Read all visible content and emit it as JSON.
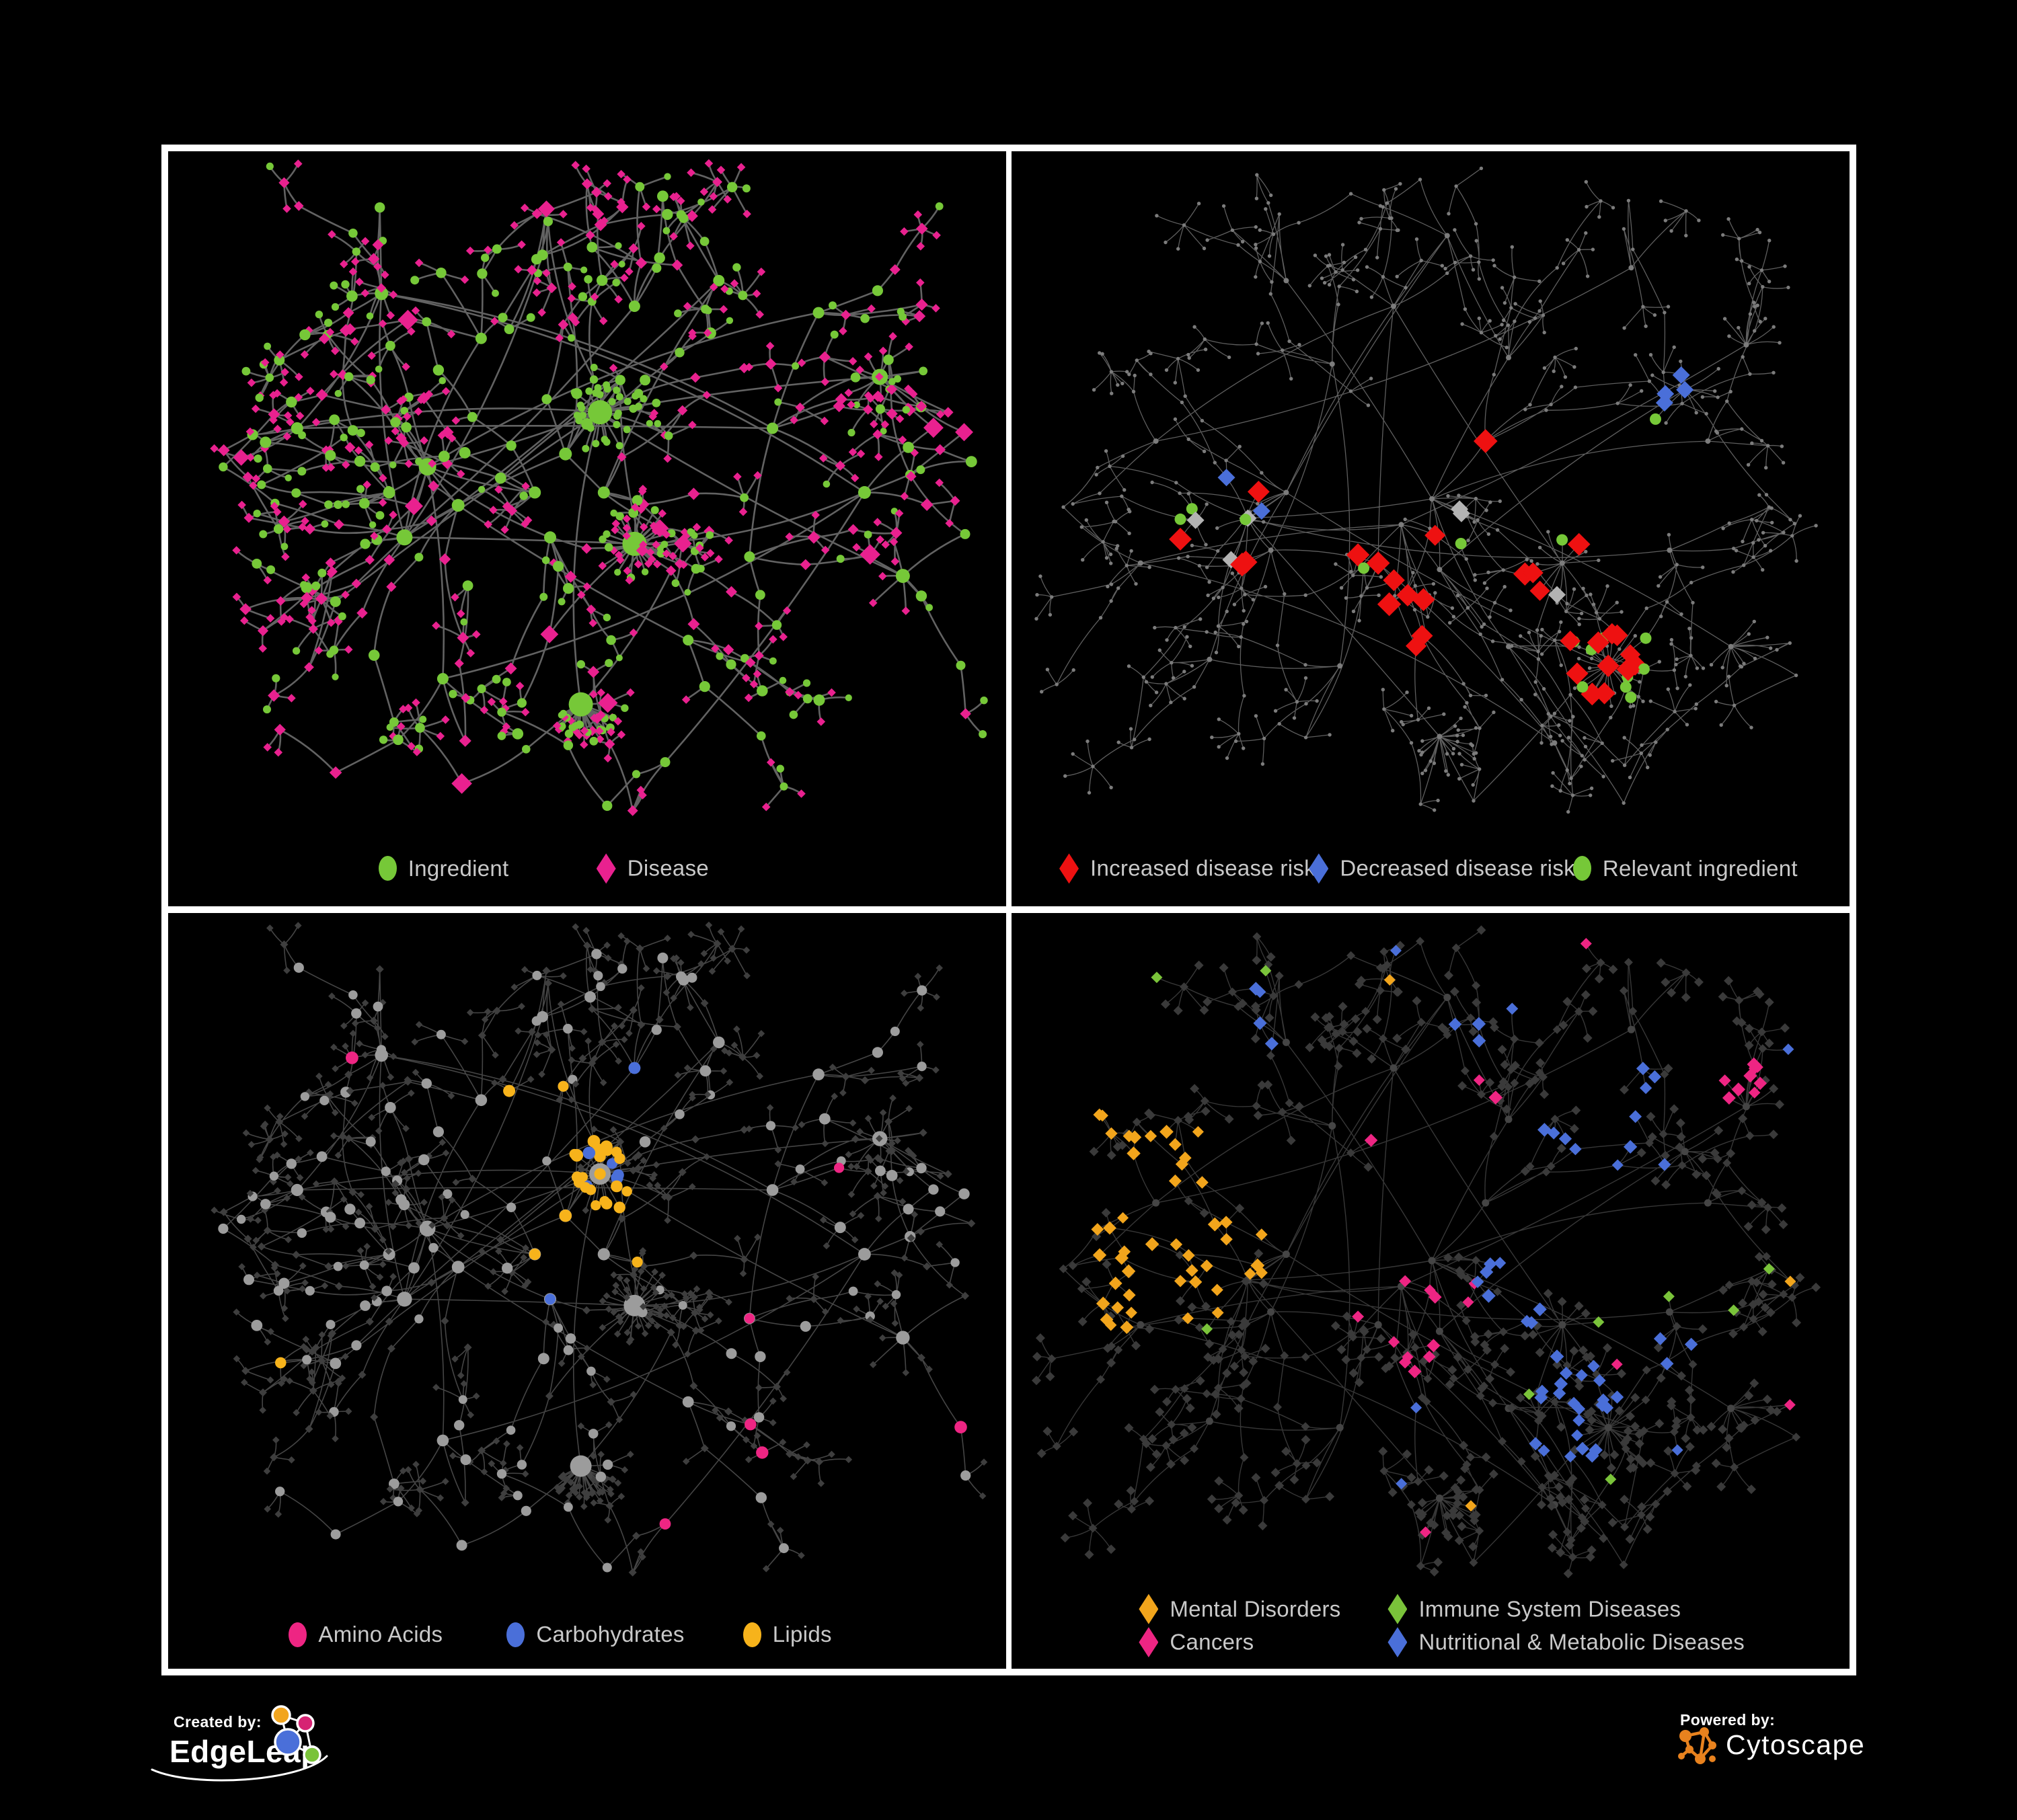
{
  "figure_background": "#000000",
  "frame_color": "#FFFFFF",
  "legend_text_color": "#C9C9C9",
  "chart_data": {
    "type": "network",
    "figure": "2x2 grid of dark network-graph panels (ingredient-disease association networks) framed in white",
    "panels": [
      {
        "id": "ingredient-disease",
        "edge_color": "#6A6A6A",
        "palette": {
          "ingredient": "#76C838",
          "disease": "#E9218F"
        },
        "legend": {
          "items": [
            {
              "label": "Ingredient",
              "shape": "circle",
              "color": "#76C838",
              "x": 0.251,
              "y": 0.95
            },
            {
              "label": "Disease",
              "shape": "diamond",
              "color": "#E9218F",
              "x": 0.511,
              "y": 0.95
            }
          ]
        }
      },
      {
        "id": "disease-risk",
        "edge_color": "#6E6E6E",
        "palette": {
          "increased": "#EE1111",
          "decreased": "#4A6FD9",
          "relevant": "#76C838",
          "other": "#B3B3B3",
          "node": "#7C7C7C"
        },
        "legend": {
          "items": [
            {
              "label": "Increased disease risk",
              "shape": "diamond",
              "color": "#EE1111",
              "x": 0.057,
              "y": 0.95
            },
            {
              "label": "Decreased disease risk",
              "shape": "diamond",
              "color": "#4A6FD9",
              "x": 0.355,
              "y": 0.95
            },
            {
              "label": "Relevant ingredient",
              "shape": "circle",
              "color": "#76C838",
              "x": 0.67,
              "y": 0.95
            }
          ]
        }
      },
      {
        "id": "macronutrients",
        "edge_color": "#9A9A9A",
        "palette": {
          "amino_acids": "#EE2583",
          "carbohydrates": "#4A6FD9",
          "lipids": "#F7B31B",
          "node_gray": "#9C9C9C",
          "leaf_dark": "#3E3E3E"
        },
        "legend": {
          "items": [
            {
              "label": "Amino Acids",
              "shape": "circle",
              "color": "#EE2583",
              "x": 0.144,
              "y": 0.955
            },
            {
              "label": "Carbohydrates",
              "shape": "circle",
              "color": "#4A6FD9",
              "x": 0.404,
              "y": 0.955
            },
            {
              "label": "Lipids",
              "shape": "circle",
              "color": "#F7B31B",
              "x": 0.686,
              "y": 0.955
            }
          ]
        }
      },
      {
        "id": "disease-categories",
        "edge_color": "#8A8A8A",
        "palette": {
          "mental": "#F2A51C",
          "immune": "#7AC33A",
          "cancers": "#EE2583",
          "nutritional": "#4A6FD9",
          "base": "#3A3A3A"
        },
        "legend": {
          "items": [
            {
              "label": "Mental Disorders",
              "shape": "diamond",
              "color": "#F2A51C",
              "x": 0.152,
              "y": 0.921
            },
            {
              "label": "Immune System Diseases",
              "shape": "diamond",
              "color": "#7AC33A",
              "x": 0.449,
              "y": 0.921
            },
            {
              "label": "Cancers",
              "shape": "diamond",
              "color": "#EE2583",
              "x": 0.152,
              "y": 0.965
            },
            {
              "label": "Nutritional & Metabolic Diseases",
              "shape": "diamond",
              "color": "#4A6FD9",
              "x": 0.449,
              "y": 0.965
            }
          ]
        }
      }
    ]
  },
  "footer": {
    "created_by_label": "Created by:",
    "edgeleap_brand": "EdgeLeap",
    "powered_by_label": "Powered by:",
    "cytoscape_brand": "Cytoscape",
    "edgeleap_icon_colors": {
      "orange": "#F2A51E",
      "pink": "#D62373",
      "blue": "#4A6FD9",
      "green": "#7AC33A"
    },
    "cytoscape_icon_color": "#E8821E"
  }
}
